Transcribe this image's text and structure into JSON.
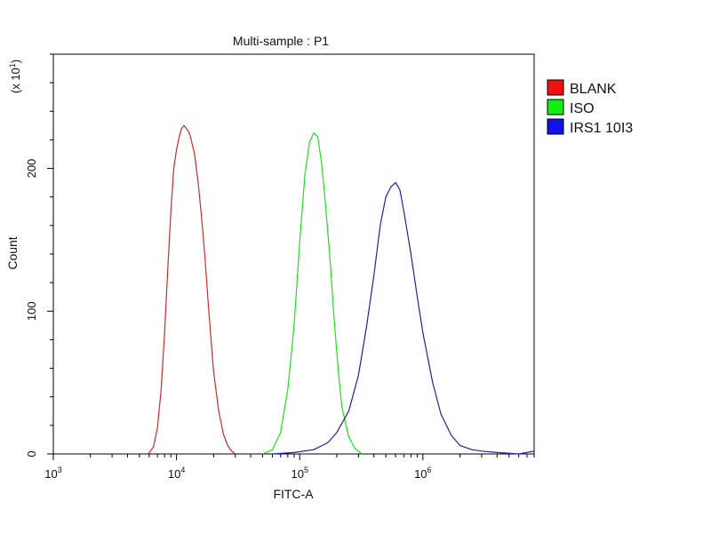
{
  "chart_data": {
    "type": "line",
    "title": "Multi-sample : P1",
    "xlabel": "FITC-A",
    "ylabel": "Count",
    "y_multiplier": "(x 10",
    "y_multiplier_exp": "1",
    "y_multiplier_close": ")",
    "x_scale": "log",
    "xlim": [
      1000,
      8000000
    ],
    "ylim": [
      0,
      280
    ],
    "x_ticks": [
      {
        "value": 1000,
        "base": "10",
        "exp": "3"
      },
      {
        "value": 10000,
        "base": "10",
        "exp": "4"
      },
      {
        "value": 100000,
        "base": "10",
        "exp": "5"
      },
      {
        "value": 1000000,
        "base": "10",
        "exp": "6"
      }
    ],
    "y_ticks": [
      {
        "value": 0,
        "label": "0"
      },
      {
        "value": 100,
        "label": "100"
      },
      {
        "value": 200,
        "label": "200"
      }
    ],
    "legend_position": "right",
    "grid": false,
    "series": [
      {
        "name": "BLANK",
        "color": "#cc2b2b",
        "swatch": "#ee1111",
        "points": [
          [
            5900,
            0
          ],
          [
            6500,
            5
          ],
          [
            7000,
            18
          ],
          [
            7500,
            45
          ],
          [
            8000,
            85
          ],
          [
            8500,
            130
          ],
          [
            9000,
            170
          ],
          [
            9500,
            200
          ],
          [
            10000,
            213
          ],
          [
            10500,
            222
          ],
          [
            11000,
            228
          ],
          [
            11500,
            230
          ],
          [
            12000,
            228
          ],
          [
            12500,
            226
          ],
          [
            13000,
            222
          ],
          [
            14000,
            210
          ],
          [
            15000,
            190
          ],
          [
            16000,
            165
          ],
          [
            17000,
            138
          ],
          [
            18000,
            108
          ],
          [
            19000,
            82
          ],
          [
            20000,
            58
          ],
          [
            22000,
            30
          ],
          [
            24000,
            14
          ],
          [
            26000,
            6
          ],
          [
            28000,
            2
          ],
          [
            30000,
            0
          ]
        ]
      },
      {
        "name": "ISO",
        "color": "#22dd22",
        "swatch": "#11ee11",
        "points": [
          [
            50000,
            0
          ],
          [
            60000,
            3
          ],
          [
            70000,
            15
          ],
          [
            80000,
            45
          ],
          [
            90000,
            90
          ],
          [
            100000,
            148
          ],
          [
            110000,
            195
          ],
          [
            120000,
            218
          ],
          [
            130000,
            225
          ],
          [
            140000,
            222
          ],
          [
            150000,
            205
          ],
          [
            160000,
            180
          ],
          [
            175000,
            140
          ],
          [
            190000,
            95
          ],
          [
            205000,
            60
          ],
          [
            220000,
            33
          ],
          [
            250000,
            12
          ],
          [
            280000,
            4
          ],
          [
            320000,
            0
          ]
        ]
      },
      {
        "name": "IRS1 10I3",
        "color": "#22229a",
        "swatch": "#1111ee",
        "points": [
          [
            60000,
            0
          ],
          [
            90000,
            1
          ],
          [
            130000,
            3
          ],
          [
            170000,
            8
          ],
          [
            200000,
            15
          ],
          [
            250000,
            30
          ],
          [
            300000,
            55
          ],
          [
            350000,
            90
          ],
          [
            400000,
            125
          ],
          [
            450000,
            160
          ],
          [
            500000,
            180
          ],
          [
            550000,
            187
          ],
          [
            600000,
            190
          ],
          [
            650000,
            185
          ],
          [
            700000,
            170
          ],
          [
            800000,
            140
          ],
          [
            900000,
            110
          ],
          [
            1000000,
            85
          ],
          [
            1200000,
            50
          ],
          [
            1400000,
            28
          ],
          [
            1700000,
            13
          ],
          [
            2000000,
            6
          ],
          [
            2500000,
            3
          ],
          [
            3000000,
            2
          ],
          [
            4000000,
            1
          ],
          [
            6000000,
            0
          ],
          [
            8000000,
            2
          ]
        ]
      }
    ]
  }
}
